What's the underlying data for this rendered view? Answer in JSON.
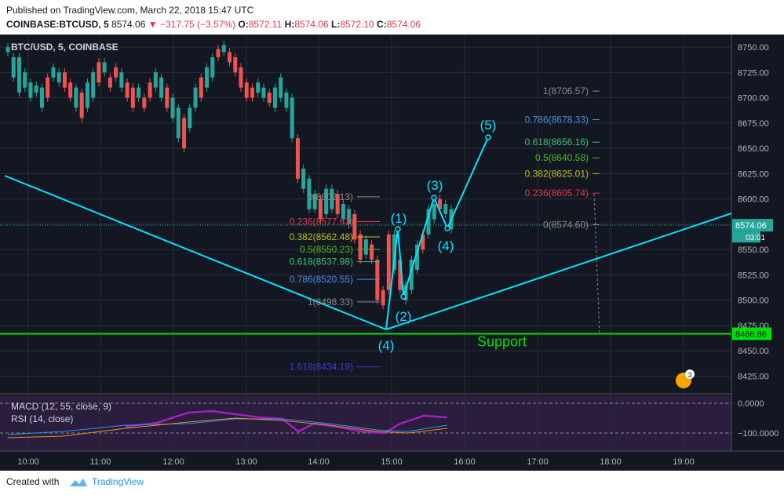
{
  "header": {
    "published": "Published on TradingView.com, March 22, 2018 15:47 UTC",
    "symbol": "COINBASE:BTCUSD, 5",
    "last": "8574.06",
    "change": "▼ −317.75 (−3.57%)",
    "o_label": "O:",
    "o_val": "8572.11",
    "h_label": "H:",
    "h_val": "8574.06",
    "l_label": "L:",
    "l_val": "8572.10",
    "c_label": "C:",
    "c_val": "8574.06"
  },
  "footer": {
    "created": "Created with",
    "brand": "TradingView"
  },
  "chart_data": {
    "type": "candlestick",
    "title": "BTC/USD, 5, COINBASE",
    "price_axis": {
      "min": 8412,
      "max": 8760,
      "ticks": [
        "8750.00",
        "8725.00",
        "8700.00",
        "8675.00",
        "8650.00",
        "8625.00",
        "8600.00",
        "8575.00",
        "8550.00",
        "8525.00",
        "8500.00",
        "8475.00",
        "8450.00",
        "8425.00"
      ]
    },
    "time_axis": {
      "ticks": [
        "10:00",
        "11:00",
        "12:00",
        "13:00",
        "14:00",
        "15:00",
        "16:00",
        "17:00",
        "18:00",
        "19:00"
      ]
    },
    "last_price": {
      "value": 8574.06,
      "label": "8574.06",
      "countdown": "03:01"
    },
    "support": {
      "value": 8466.86,
      "label": "Support",
      "axis_label": "8466.86"
    },
    "wave_labels": [
      "(1)",
      "(2)",
      "(3)",
      "(4)",
      "(5)",
      "(4)"
    ],
    "fib_left": [
      {
        "ratio": "0.786(8520.55)",
        "value": 8520.55,
        "color": "#4a8fe0"
      },
      {
        "ratio": "0.618(8537.98)",
        "value": 8537.98,
        "color": "#3ac46c"
      },
      {
        "ratio": "0.5(8550.23)",
        "value": 8550.23,
        "color": "#4cbb17"
      },
      {
        "ratio": "0.382(8562.48)",
        "value": 8562.48,
        "color": "#b8c21a"
      },
      {
        "ratio": "0.236(8577.63)",
        "value": 8577.63,
        "color": "#e0394a"
      },
      {
        "ratio": "0(8602.13)",
        "value": 8602.13,
        "color": "#8a8a8a"
      },
      {
        "ratio": "1(8498.33)",
        "value": 8498.33,
        "color": "#8a8a8a"
      },
      {
        "ratio": "1.618(8434.19)",
        "value": 8434.19,
        "color": "#3a3ad0"
      }
    ],
    "fib_right": [
      {
        "ratio": "1(8706.57)",
        "value": 8706.57,
        "color": "#8a8a8a"
      },
      {
        "ratio": "0.786(8678.33)",
        "value": 8678.33,
        "color": "#4a8fe0"
      },
      {
        "ratio": "0.618(8656.16)",
        "value": 8656.16,
        "color": "#3ac46c"
      },
      {
        "ratio": "0.5(8640.58)",
        "value": 8640.58,
        "color": "#4cbb17"
      },
      {
        "ratio": "0.382(8625.01)",
        "value": 8625.01,
        "color": "#b8c21a"
      },
      {
        "ratio": "0.236(8605.74)",
        "value": 8605.74,
        "color": "#e0394a"
      },
      {
        "ratio": "0(8574.60)",
        "value": 8574.6,
        "color": "#8a8a8a"
      }
    ],
    "indicators": {
      "macd_label": "MACD (12, 55, close, 9)",
      "rsi_label": "RSI (14, close)",
      "axis_ticks": [
        "0.0000",
        "−100.0000"
      ]
    },
    "colors": {
      "up": "#26a69a",
      "down": "#ef5350",
      "wave": "#00e5ff",
      "support": "#00e000",
      "bg": "#131722",
      "grid": "#2a2e39"
    }
  }
}
